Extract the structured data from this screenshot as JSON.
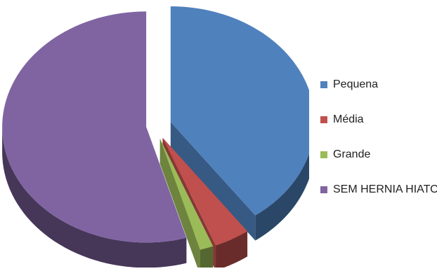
{
  "chart_data": {
    "type": "pie",
    "style": "3d-exploded",
    "categories": [
      "Pequena",
      "Média",
      "Grande",
      "SEM HERNIA HIATO"
    ],
    "values": [
      40.0,
      4.0,
      1.5,
      54.5
    ],
    "colors": [
      "#4f81bd",
      "#c0504d",
      "#9bbb59",
      "#8064a2"
    ],
    "title": "",
    "legend": {
      "position": "right",
      "entries": [
        "Pequena",
        "Média",
        "Grande",
        "SEM HERNIA HIATO"
      ]
    }
  }
}
